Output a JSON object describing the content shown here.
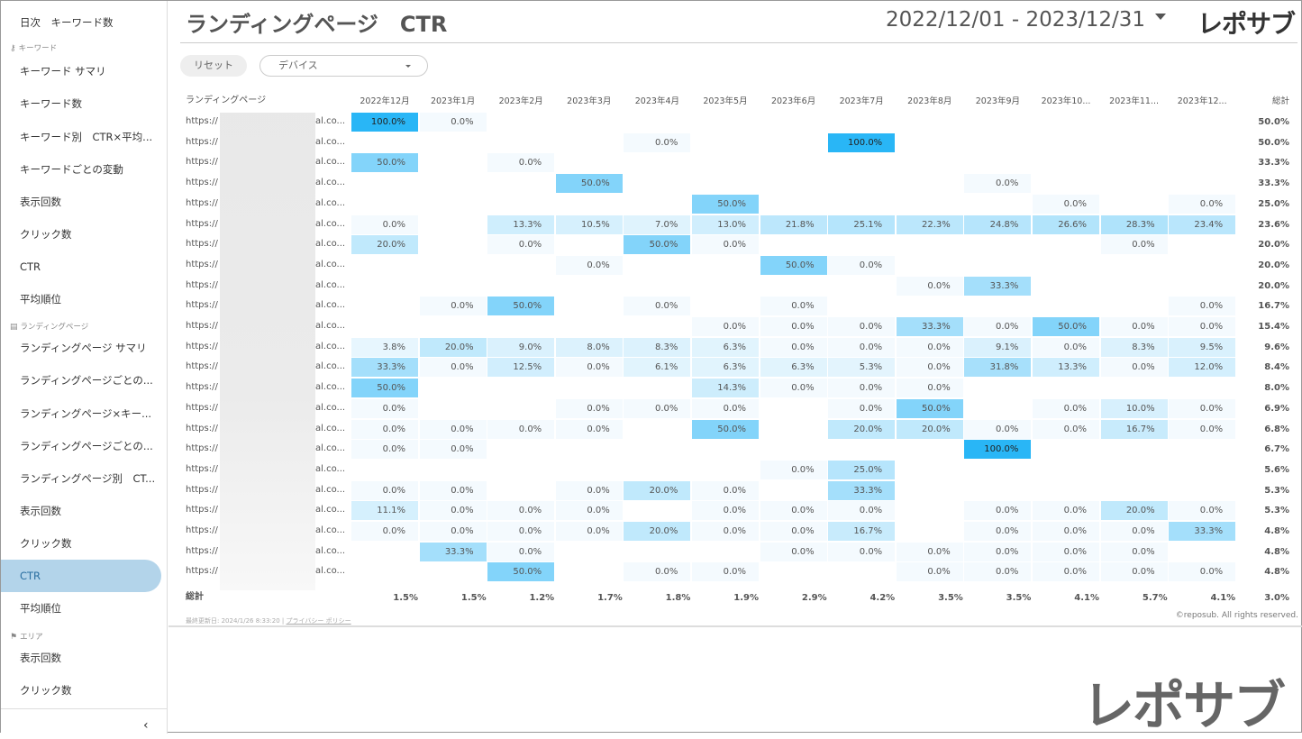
{
  "sidebar": {
    "items": [
      {
        "label": "日次　キーワード数",
        "type": "item"
      },
      {
        "label": "キーワード",
        "type": "section",
        "icon": "key-icon"
      },
      {
        "label": "キーワード サマリ",
        "type": "item"
      },
      {
        "label": "キーワード数",
        "type": "item"
      },
      {
        "label": "キーワード別　CTR×平均...",
        "type": "item"
      },
      {
        "label": "キーワードごとの変動",
        "type": "item"
      },
      {
        "label": "表示回数",
        "type": "item"
      },
      {
        "label": "クリック数",
        "type": "item"
      },
      {
        "label": "CTR",
        "type": "item"
      },
      {
        "label": "平均順位",
        "type": "item"
      },
      {
        "label": "ランディングページ",
        "type": "section",
        "icon": "page-icon"
      },
      {
        "label": "ランディングページ サマリ",
        "type": "item"
      },
      {
        "label": "ランディングページごとの...",
        "type": "item"
      },
      {
        "label": "ランディングページ×キー...",
        "type": "item"
      },
      {
        "label": "ランディングページごとの...",
        "type": "item"
      },
      {
        "label": "ランディングページ別　CT...",
        "type": "item"
      },
      {
        "label": "表示回数",
        "type": "item"
      },
      {
        "label": "クリック数",
        "type": "item"
      },
      {
        "label": "CTR",
        "type": "item",
        "active": true
      },
      {
        "label": "平均順位",
        "type": "item"
      },
      {
        "label": "エリア",
        "type": "section",
        "icon": "flag-icon"
      },
      {
        "label": "表示回数",
        "type": "item"
      },
      {
        "label": "クリック数",
        "type": "item"
      }
    ],
    "collapse_label": "‹"
  },
  "header": {
    "title": "ランディングページ　CTR",
    "date_range": "2022/12/01 - 2023/12/31",
    "logo": "レポサブ"
  },
  "filters": {
    "reset_label": "リセット",
    "device_label": "デバイス"
  },
  "table": {
    "columns": [
      "ランディングページ",
      "2022年12月",
      "2023年1月",
      "2023年2月",
      "2023年3月",
      "2023年4月",
      "2023年5月",
      "2023年6月",
      "2023年7月",
      "2023年8月",
      "2023年9月",
      "2023年10...",
      "2023年11...",
      "2023年12...",
      "総計"
    ],
    "url_prefix": "https://",
    "url_suffix": "al.co...",
    "rows": [
      [
        "100.0%",
        "0.0%",
        "",
        "",
        "",
        "",
        "",
        "",
        "",
        "",
        "",
        "",
        "",
        "50.0%"
      ],
      [
        "",
        "",
        "",
        "",
        "0.0%",
        "",
        "",
        "100.0%",
        "",
        "",
        "",
        "",
        "",
        "50.0%"
      ],
      [
        "50.0%",
        "",
        "0.0%",
        "",
        "",
        "",
        "",
        "",
        "",
        "",
        "",
        "",
        "",
        "33.3%"
      ],
      [
        "",
        "",
        "",
        "50.0%",
        "",
        "",
        "",
        "",
        "",
        "0.0%",
        "",
        "",
        "",
        "33.3%"
      ],
      [
        "",
        "",
        "",
        "",
        "",
        "50.0%",
        "",
        "",
        "",
        "",
        "0.0%",
        "",
        "0.0%",
        "25.0%"
      ],
      [
        "0.0%",
        "",
        "13.3%",
        "10.5%",
        "7.0%",
        "13.0%",
        "21.8%",
        "25.1%",
        "22.3%",
        "24.8%",
        "26.6%",
        "28.3%",
        "23.4%",
        "23.6%"
      ],
      [
        "20.0%",
        "",
        "0.0%",
        "",
        "50.0%",
        "0.0%",
        "",
        "",
        "",
        "",
        "",
        "0.0%",
        "",
        "20.0%"
      ],
      [
        "",
        "",
        "",
        "0.0%",
        "",
        "",
        "50.0%",
        "0.0%",
        "",
        "",
        "",
        "",
        "",
        "20.0%"
      ],
      [
        "",
        "",
        "",
        "",
        "",
        "",
        "",
        "",
        "0.0%",
        "33.3%",
        "",
        "",
        "",
        "20.0%"
      ],
      [
        "",
        "0.0%",
        "50.0%",
        "",
        "0.0%",
        "",
        "0.0%",
        "",
        "",
        "",
        "",
        "",
        "0.0%",
        "16.7%"
      ],
      [
        "",
        "",
        "",
        "",
        "",
        "0.0%",
        "0.0%",
        "0.0%",
        "33.3%",
        "0.0%",
        "50.0%",
        "0.0%",
        "0.0%",
        "15.4%"
      ],
      [
        "3.8%",
        "20.0%",
        "9.0%",
        "8.0%",
        "8.3%",
        "6.3%",
        "0.0%",
        "0.0%",
        "0.0%",
        "9.1%",
        "0.0%",
        "8.3%",
        "9.5%",
        "9.6%"
      ],
      [
        "33.3%",
        "0.0%",
        "12.5%",
        "0.0%",
        "6.1%",
        "6.3%",
        "6.3%",
        "5.3%",
        "0.0%",
        "31.8%",
        "13.3%",
        "0.0%",
        "12.0%",
        "8.4%"
      ],
      [
        "50.0%",
        "",
        "",
        "",
        "",
        "14.3%",
        "0.0%",
        "0.0%",
        "0.0%",
        "",
        "",
        "",
        "",
        "8.0%"
      ],
      [
        "0.0%",
        "",
        "",
        "0.0%",
        "0.0%",
        "0.0%",
        "",
        "0.0%",
        "50.0%",
        "",
        "0.0%",
        "10.0%",
        "0.0%",
        "6.9%"
      ],
      [
        "0.0%",
        "0.0%",
        "0.0%",
        "0.0%",
        "",
        "50.0%",
        "",
        "20.0%",
        "20.0%",
        "0.0%",
        "0.0%",
        "16.7%",
        "0.0%",
        "6.8%"
      ],
      [
        "0.0%",
        "0.0%",
        "",
        "",
        "",
        "",
        "",
        "",
        "",
        "100.0%",
        "",
        "",
        "",
        "6.7%"
      ],
      [
        "",
        "",
        "",
        "",
        "",
        "",
        "0.0%",
        "25.0%",
        "",
        "",
        "",
        "",
        "",
        "5.6%"
      ],
      [
        "0.0%",
        "0.0%",
        "",
        "0.0%",
        "20.0%",
        "0.0%",
        "",
        "33.3%",
        "",
        "",
        "",
        "",
        "",
        "5.3%"
      ],
      [
        "11.1%",
        "0.0%",
        "0.0%",
        "0.0%",
        "",
        "0.0%",
        "0.0%",
        "0.0%",
        "",
        "0.0%",
        "0.0%",
        "20.0%",
        "0.0%",
        "5.3%"
      ],
      [
        "0.0%",
        "0.0%",
        "0.0%",
        "0.0%",
        "20.0%",
        "0.0%",
        "0.0%",
        "16.7%",
        "",
        "0.0%",
        "0.0%",
        "0.0%",
        "33.3%",
        "4.8%"
      ],
      [
        "",
        "33.3%",
        "0.0%",
        "",
        "",
        "",
        "0.0%",
        "0.0%",
        "0.0%",
        "0.0%",
        "0.0%",
        "0.0%",
        "",
        "4.8%"
      ],
      [
        "",
        "",
        "50.0%",
        "",
        "0.0%",
        "0.0%",
        "",
        "",
        "0.0%",
        "0.0%",
        "0.0%",
        "0.0%",
        "0.0%",
        "4.8%"
      ]
    ],
    "total_label": "総計",
    "totals": [
      "1.5%",
      "1.5%",
      "1.2%",
      "1.7%",
      "1.8%",
      "1.9%",
      "2.9%",
      "4.2%",
      "3.5%",
      "3.5%",
      "4.1%",
      "5.7%",
      "4.1%",
      "3.0%"
    ]
  },
  "footer": {
    "updated": "最終更新日: 2024/1/26 8:33:20 |",
    "privacy": "プライバシー ポリシー",
    "copyright": "©reposub. All rights reserved."
  },
  "colors": {
    "max": "#29b6f6",
    "min": "#f4fafe",
    "active_nav": "#b3d4ea"
  }
}
